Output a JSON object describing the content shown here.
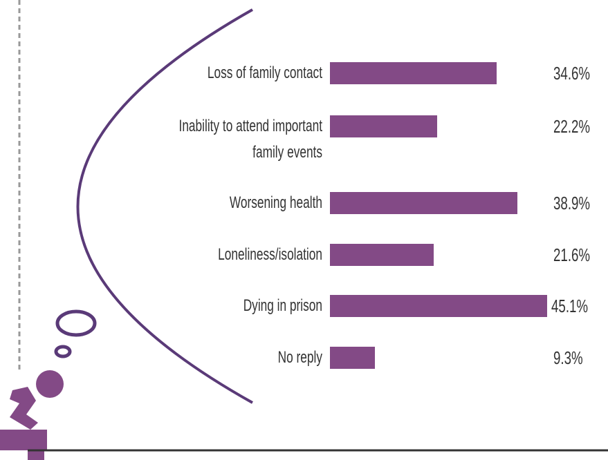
{
  "chart_data": {
    "type": "bar",
    "orientation": "horizontal",
    "categories": [
      "Loss of family contact",
      "Inability to attend important family events",
      "Worsening health",
      "Loneliness/isolation",
      "Dying in prison",
      "No reply"
    ],
    "values": [
      34.6,
      22.2,
      38.9,
      21.6,
      45.1,
      9.3
    ],
    "value_labels": [
      "34.6%",
      "22.2%",
      "38.9%",
      "21.6%",
      "45.1%",
      "9.3%"
    ],
    "color": "#834a86"
  }
}
